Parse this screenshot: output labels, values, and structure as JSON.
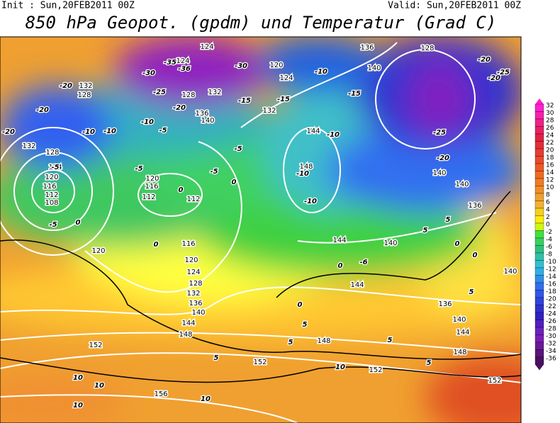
{
  "header": {
    "init": "Init : Sun,20FEB2011 00Z",
    "valid": "Valid: Sun,20FEB2011 00Z",
    "title": "850 hPa Geopot. (gpdm) und Temperatur (Grad C)"
  },
  "colorbar": [
    32,
    30,
    28,
    26,
    24,
    22,
    20,
    18,
    16,
    14,
    12,
    10,
    8,
    6,
    4,
    2,
    0,
    -2,
    -4,
    -6,
    -8,
    -10,
    -12,
    -14,
    -16,
    -18,
    -20,
    -22,
    -24,
    -26,
    -28,
    -30,
    -32,
    -34,
    -36
  ],
  "geopotential_labels": [
    124,
    124,
    120,
    124,
    128,
    132,
    136,
    140,
    132,
    128,
    132,
    128,
    124,
    120,
    116,
    112,
    108,
    120,
    116,
    112,
    112,
    116,
    120,
    124,
    128,
    132,
    136,
    140,
    144,
    148,
    152,
    156,
    120,
    136,
    140,
    144,
    148,
    144,
    140,
    144,
    148,
    152,
    152,
    148,
    144,
    140,
    136,
    140,
    136,
    140,
    132,
    128,
    140,
    152
  ],
  "temperature_labels": [
    -35,
    -30,
    -36,
    -30,
    -25,
    -20,
    -15,
    -10,
    -20,
    -20,
    -20,
    -10,
    -10,
    -5,
    -5,
    -5,
    -5,
    0,
    0,
    0,
    -6,
    -5,
    0,
    0,
    -15,
    -10,
    -10,
    -10,
    -20,
    -25,
    -20,
    -25,
    -20,
    -15,
    -10,
    0,
    -5,
    0,
    5,
    5,
    5,
    5,
    5,
    5,
    10,
    10,
    10,
    10,
    10,
    5,
    0,
    5
  ]
}
